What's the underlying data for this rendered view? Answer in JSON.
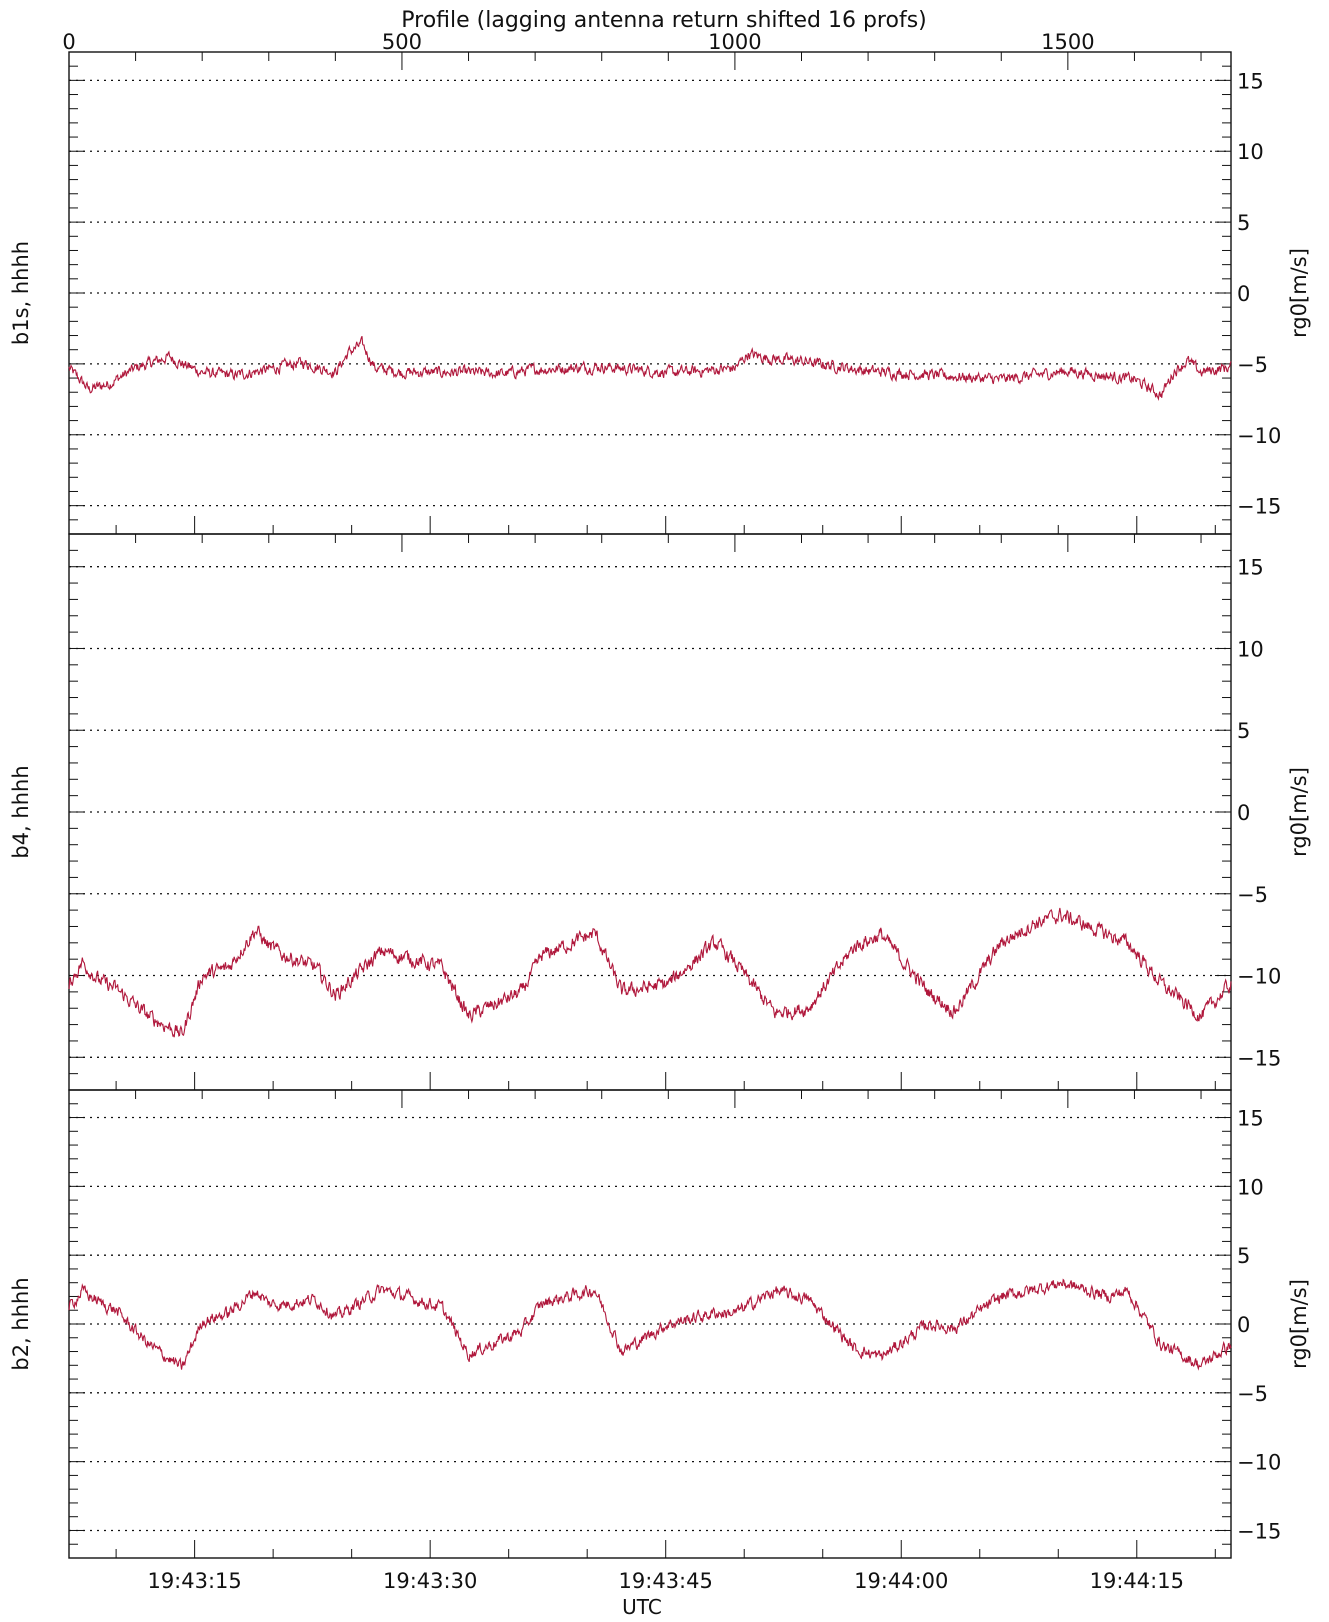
{
  "chart_data": {
    "type": "line",
    "top_axis": {
      "title": "Profile (lagging antenna return shifted 16 profs)",
      "range": [
        0,
        1745
      ],
      "major_ticks": [
        0,
        500,
        1000,
        1500
      ],
      "tick_labels": [
        "0",
        "500",
        "1000",
        "1500"
      ],
      "minor_step": 100
    },
    "x_axis": {
      "title": "UTC",
      "range": [
        "19:43:07",
        "19:44:21"
      ],
      "tick_labels": [
        "19:43:15",
        "19:43:30",
        "19:43:45",
        "19:44:00",
        "19:44:15"
      ],
      "tick_seconds": [
        15,
        30,
        45,
        60,
        75
      ],
      "minor_step_seconds": 5
    },
    "line_color": "#b0183c",
    "grid": "dotted horizontal at every 5 m/s",
    "panels": [
      {
        "ylabel_left": "b1s, hhhh",
        "ylabel_right": "rg0[m/s]",
        "ylim": [
          -17,
          17
        ],
        "yticks": [
          15,
          10,
          5,
          0,
          -5,
          -10,
          -15
        ],
        "ytick_labels": [
          "15",
          "10",
          "5",
          "0",
          "−5",
          "−10",
          "−15"
        ],
        "trend_profile": [
          0,
          30,
          60,
          100,
          150,
          170,
          200,
          250,
          300,
          350,
          400,
          420,
          440,
          460,
          500,
          600,
          650,
          700,
          800,
          850,
          900,
          950,
          1000,
          1020,
          1050,
          1100,
          1200,
          1300,
          1400,
          1500,
          1600,
          1640,
          1660,
          1680,
          1700,
          1745
        ],
        "trend_value": [
          -5.3,
          -6.8,
          -6.4,
          -5.3,
          -4.5,
          -5.0,
          -5.6,
          -5.8,
          -5.4,
          -4.9,
          -5.6,
          -4.2,
          -3.6,
          -5.3,
          -5.6,
          -5.6,
          -5.7,
          -5.4,
          -5.2,
          -5.4,
          -5.6,
          -5.5,
          -5.3,
          -4.3,
          -4.6,
          -4.8,
          -5.5,
          -5.8,
          -6.1,
          -5.5,
          -6.1,
          -7.2,
          -5.5,
          -4.8,
          -5.6,
          -5.2
        ],
        "noise_amplitude": 0.35
      },
      {
        "ylabel_left": "b4, hhhh",
        "ylabel_right": "rg0[m/s]",
        "ylim": [
          -17,
          17
        ],
        "yticks": [
          15,
          10,
          5,
          0,
          -5,
          -10,
          -15
        ],
        "ytick_labels": [
          "15",
          "10",
          "5",
          "0",
          "−5",
          "−10",
          "−15"
        ],
        "trend_profile": [
          0,
          20,
          45,
          70,
          120,
          170,
          200,
          240,
          280,
          300,
          320,
          370,
          400,
          470,
          560,
          600,
          680,
          710,
          790,
          830,
          900,
          970,
          1000,
          1060,
          1110,
          1180,
          1220,
          1290,
          1330,
          1400,
          1450,
          1490,
          1560,
          1590,
          1640,
          1700,
          1745
        ],
        "trend_value": [
          -10.5,
          -9.2,
          -10.3,
          -10.8,
          -12.5,
          -13.6,
          -10.0,
          -9.5,
          -7.2,
          -8.2,
          -8.7,
          -9.5,
          -11.2,
          -8.5,
          -9.5,
          -12.5,
          -11.0,
          -8.8,
          -7.4,
          -11.0,
          -10.5,
          -8.0,
          -9.2,
          -12.3,
          -12.0,
          -8.2,
          -7.5,
          -11.0,
          -12.2,
          -8.0,
          -6.8,
          -6.3,
          -7.5,
          -8.0,
          -10.5,
          -12.5,
          -10.5
        ],
        "noise_amplitude": 0.4
      },
      {
        "ylabel_left": "b2, hhhh",
        "ylabel_right": "rg0[m/s]",
        "ylim": [
          -17,
          17
        ],
        "yticks": [
          15,
          10,
          5,
          0,
          -5,
          -10,
          -15
        ],
        "ytick_labels": [
          "15",
          "10",
          "5",
          "0",
          "−5",
          "−10",
          "−15"
        ],
        "trend_profile": [
          0,
          20,
          45,
          70,
          120,
          170,
          200,
          240,
          280,
          300,
          320,
          370,
          400,
          470,
          560,
          600,
          680,
          710,
          790,
          830,
          900,
          970,
          1000,
          1060,
          1110,
          1180,
          1220,
          1290,
          1330,
          1400,
          1450,
          1490,
          1560,
          1590,
          1640,
          1700,
          1745
        ],
        "trend_value": [
          1.2,
          2.4,
          1.6,
          1.0,
          -1.5,
          -3.2,
          0.2,
          0.8,
          2.4,
          1.5,
          1.4,
          1.8,
          0.5,
          2.5,
          1.2,
          -2.2,
          -0.5,
          1.5,
          2.5,
          -2.0,
          0.0,
          0.8,
          0.8,
          2.4,
          1.8,
          -1.8,
          -2.4,
          0.0,
          -0.3,
          2.0,
          2.5,
          3.0,
          2.0,
          2.4,
          -1.5,
          -3.0,
          -1.5
        ],
        "noise_amplitude": 0.4
      }
    ]
  }
}
